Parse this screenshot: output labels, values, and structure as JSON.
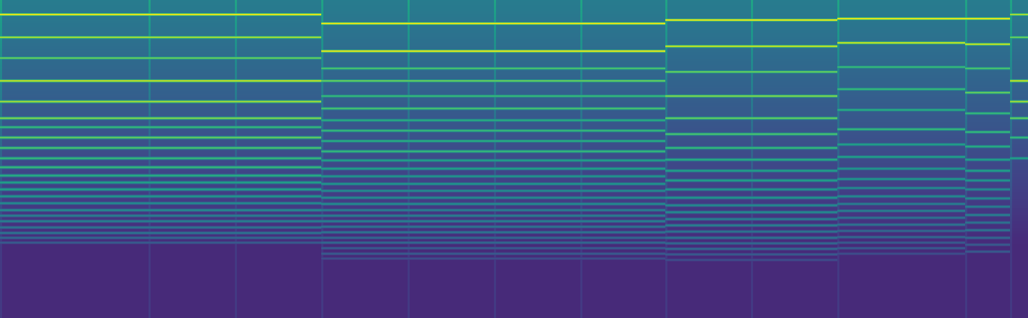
{
  "chart_data": {
    "type": "spectrogram",
    "tick_labels": false,
    "xlim": [
      0,
      1488
    ],
    "ylim": [
      461,
      0
    ],
    "value_range": [
      0,
      1
    ],
    "notes": [
      {
        "spans": [
          [
            0,
            215
          ],
          [
            215,
            340
          ],
          [
            340,
            465
          ]
        ],
        "lines": [
          22,
          55,
          85,
          118,
          148,
          172,
          185,
          200,
          215,
          230,
          243,
          255,
          265,
          275,
          285,
          295,
          305,
          313,
          321,
          330,
          338,
          345,
          352
        ],
        "levels": [
          1.0,
          0.9,
          0.8,
          0.95,
          0.9,
          0.85,
          0.7,
          0.8,
          0.75,
          0.7,
          0.7,
          0.65,
          0.6,
          0.6,
          0.55,
          0.5,
          0.5,
          0.45,
          0.45,
          0.4,
          0.4,
          0.35,
          0.3
        ]
      },
      {
        "spans": [
          [
            465,
            590
          ],
          [
            590,
            715
          ],
          [
            715,
            840
          ],
          [
            840,
            963
          ]
        ],
        "lines": [
          35,
          75,
          100,
          118,
          140,
          158,
          175,
          190,
          205,
          220,
          233,
          245,
          256,
          267,
          277,
          287,
          296,
          305,
          313,
          321,
          329,
          337,
          345,
          352,
          360,
          368,
          375
        ],
        "levels": [
          1.0,
          1.0,
          0.75,
          0.8,
          0.7,
          0.75,
          0.65,
          0.7,
          0.65,
          0.7,
          0.6,
          0.6,
          0.55,
          0.55,
          0.5,
          0.5,
          0.5,
          0.45,
          0.45,
          0.45,
          0.4,
          0.4,
          0.35,
          0.35,
          0.3,
          0.3,
          0.25
        ]
      },
      {
        "spans": [
          [
            963,
            1087
          ],
          [
            1087,
            1212
          ]
        ],
        "lines": [
          30,
          68,
          105,
          140,
          172,
          195,
          215,
          232,
          248,
          262,
          275,
          287,
          298,
          308,
          318,
          327,
          336,
          345,
          353,
          361,
          369,
          377
        ],
        "levels": [
          1.0,
          0.95,
          0.8,
          0.85,
          0.8,
          0.75,
          0.7,
          0.65,
          0.6,
          0.6,
          0.55,
          0.55,
          0.5,
          0.5,
          0.45,
          0.45,
          0.4,
          0.4,
          0.35,
          0.35,
          0.3,
          0.25
        ]
      },
      {
        "spans": [
          [
            1212,
            1397
          ]
        ],
        "lines": [
          28,
          63,
          98,
          130,
          160,
          188,
          210,
          228,
          245,
          260,
          273,
          285,
          296,
          306,
          316,
          326,
          335,
          344,
          352,
          360,
          368
        ],
        "levels": [
          1.0,
          0.95,
          0.7,
          0.7,
          0.65,
          0.7,
          0.6,
          0.6,
          0.55,
          0.55,
          0.5,
          0.5,
          0.45,
          0.45,
          0.4,
          0.4,
          0.35,
          0.35,
          0.3,
          0.3,
          0.25
        ]
      },
      {
        "spans": [
          [
            1397,
            1462
          ]
        ],
        "lines": [
          28,
          65,
          100,
          135,
          165,
          192,
          213,
          232,
          248,
          262,
          275,
          288,
          300,
          312,
          323,
          334,
          345,
          355,
          365
        ],
        "levels": [
          1.0,
          0.95,
          0.75,
          0.8,
          0.7,
          0.7,
          0.65,
          0.6,
          0.6,
          0.55,
          0.5,
          0.5,
          0.45,
          0.45,
          0.4,
          0.4,
          0.35,
          0.3,
          0.3
        ]
      },
      {
        "spans": [
          [
            1462,
            1488
          ]
        ],
        "lines": [
          22,
          55,
          118,
          148,
          172,
          200,
          230
        ],
        "levels": [
          0.9,
          0.8,
          0.95,
          0.9,
          0.8,
          0.7,
          0.6
        ]
      }
    ]
  }
}
